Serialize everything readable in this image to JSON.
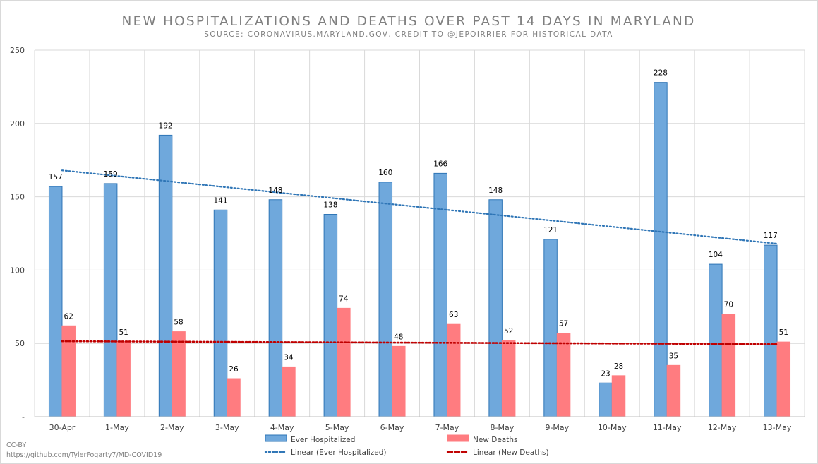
{
  "chart_data": {
    "type": "bar",
    "title": "NEW HOSPITALIZATIONS AND DEATHS OVER PAST 14 DAYS IN MARYLAND",
    "subtitle": "SOURCE: CORONAVIRUS.MARYLAND.GOV, CREDIT TO @JEPOIRRIER FOR HISTORICAL DATA",
    "categories": [
      "30-Apr",
      "1-May",
      "2-May",
      "3-May",
      "4-May",
      "5-May",
      "6-May",
      "7-May",
      "8-May",
      "9-May",
      "10-May",
      "11-May",
      "12-May",
      "13-May"
    ],
    "series": [
      {
        "name": "Ever Hospitalized",
        "values": [
          157,
          159,
          192,
          141,
          148,
          138,
          160,
          166,
          148,
          121,
          23,
          228,
          104,
          117
        ],
        "color": "#6fa8dc",
        "border": "#2e75b6"
      },
      {
        "name": "New Deaths",
        "values": [
          62,
          51,
          58,
          26,
          34,
          74,
          48,
          63,
          52,
          57,
          28,
          35,
          70,
          51
        ],
        "color": "#ff7c80",
        "border": "#ff7c80"
      }
    ],
    "trendlines": [
      {
        "name": "Linear (Ever Hospitalized)",
        "color": "#2e75b6",
        "start": 168,
        "end": 118
      },
      {
        "name": "Linear (New Deaths)",
        "color": "#c00000",
        "start": 51.5,
        "end": 49.5
      }
    ],
    "ylim": [
      0,
      250
    ],
    "yticks": [
      0,
      50,
      100,
      150,
      200,
      250
    ],
    "ytick_labels": [
      "-",
      "50",
      "100",
      "150",
      "200",
      "250"
    ],
    "grid": true,
    "legend_position": "bottom"
  },
  "credit": {
    "line1": "CC-BY",
    "line2": "https://github.com/TylerFogarty7/MD-COVID19"
  }
}
